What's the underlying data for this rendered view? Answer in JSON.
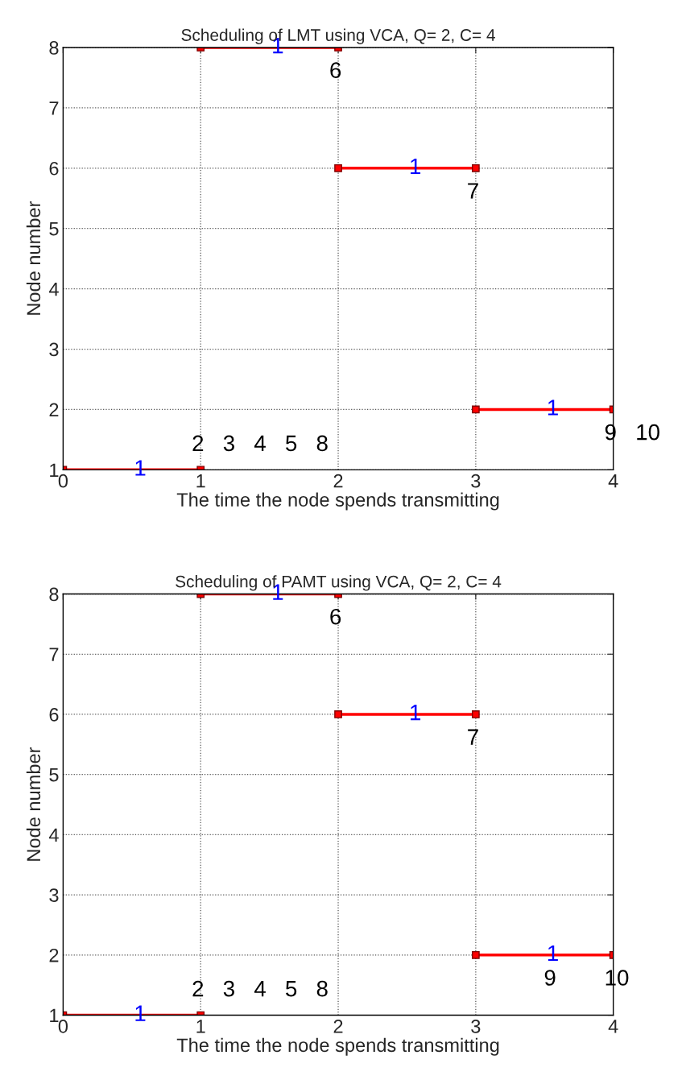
{
  "chart_data": [
    {
      "type": "line",
      "title": "Scheduling of LMT using VCA, Q= 2, C= 4",
      "xlabel": "The time the node spends transmitting",
      "ylabel": "Node number",
      "xlim": [
        0,
        4
      ],
      "ylim": [
        1,
        8
      ],
      "xticks": [
        0,
        1,
        2,
        3,
        4
      ],
      "yticks": [
        1,
        2,
        3,
        4,
        5,
        6,
        7,
        8
      ],
      "grid": true,
      "marker": "square",
      "line_style": "solid",
      "legend": false,
      "series": [
        {
          "x": [
            0,
            1
          ],
          "values": [
            1,
            1
          ],
          "color": "#ff0000"
        },
        {
          "x": [
            1,
            2
          ],
          "values": [
            8,
            8
          ],
          "color": "#ff0000"
        },
        {
          "x": [
            2,
            3
          ],
          "values": [
            6,
            6
          ],
          "color": "#ff0000"
        },
        {
          "x": [
            3,
            4
          ],
          "values": [
            2,
            2
          ],
          "color": "#ff0000"
        }
      ],
      "annotations": [
        {
          "text": "1",
          "x": 0.56,
          "y": 1
        },
        {
          "text": "1",
          "x": 1.56,
          "y": 8
        },
        {
          "text": "1",
          "x": 2.56,
          "y": 6
        },
        {
          "text": "1",
          "x": 3.56,
          "y": 2
        },
        {
          "text": "2   3   4   5   8",
          "x": 1,
          "y": 1
        },
        {
          "text": "6",
          "x": 2,
          "y": 8
        },
        {
          "text": "7",
          "x": 3,
          "y": 6
        },
        {
          "text": "9   10",
          "x": 4,
          "y": 2
        }
      ]
    },
    {
      "type": "line",
      "title": "Scheduling of PAMT using VCA, Q= 2, C= 4",
      "xlabel": "The time the node spends transmitting",
      "ylabel": "Node number",
      "xlim": [
        0,
        4
      ],
      "ylim": [
        1,
        8
      ],
      "xticks": [
        0,
        1,
        2,
        3,
        4
      ],
      "yticks": [
        1,
        2,
        3,
        4,
        5,
        6,
        7,
        8
      ],
      "grid": true,
      "marker": "square",
      "line_style": "solid",
      "legend": false,
      "series": [
        {
          "x": [
            0,
            1
          ],
          "values": [
            1,
            1
          ],
          "color": "#ff0000"
        },
        {
          "x": [
            1,
            2
          ],
          "values": [
            8,
            8
          ],
          "color": "#ff0000"
        },
        {
          "x": [
            2,
            3
          ],
          "values": [
            6,
            6
          ],
          "color": "#ff0000"
        },
        {
          "x": [
            3,
            4
          ],
          "values": [
            2,
            2
          ],
          "color": "#ff0000"
        }
      ],
      "annotations": [
        {
          "text": "1",
          "x": 0.56,
          "y": 1
        },
        {
          "text": "1",
          "x": 1.56,
          "y": 8
        },
        {
          "text": "1",
          "x": 2.56,
          "y": 6
        },
        {
          "text": "1",
          "x": 3.56,
          "y": 2
        },
        {
          "text": "2   3   4   5   8",
          "x": 1,
          "y": 1
        },
        {
          "text": "6",
          "x": 2,
          "y": 8
        },
        {
          "text": "7",
          "x": 3,
          "y": 6
        },
        {
          "text": "9",
          "x": 3.56,
          "y": 2
        },
        {
          "text": "10",
          "x": 4,
          "y": 2
        }
      ]
    }
  ]
}
